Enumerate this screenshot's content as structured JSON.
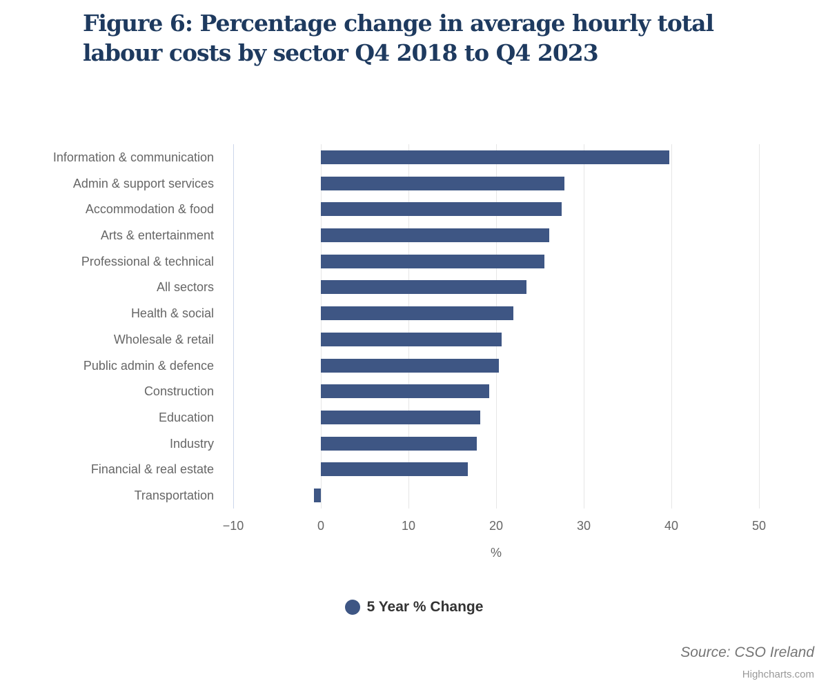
{
  "title": "Figure 6: Percentage change in average hourly total labour costs by sector Q4 2018 to Q4 2023",
  "chart_data": {
    "type": "bar",
    "orientation": "horizontal",
    "title": "Figure 6: Percentage change in average hourly total labour costs by sector Q4 2018 to Q4 2023",
    "categories": [
      "Information & communication",
      "Admin & support services",
      "Accommodation & food",
      "Arts & entertainment",
      "Professional & technical",
      "All sectors",
      "Health & social",
      "Wholesale & retail",
      "Public admin & defence",
      "Construction",
      "Education",
      "Industry",
      "Financial & real estate",
      "Transportation"
    ],
    "series": [
      {
        "name": "5 Year % Change",
        "values": [
          39.8,
          27.8,
          27.5,
          26.1,
          25.5,
          23.5,
          22.0,
          20.6,
          20.3,
          19.2,
          18.2,
          17.8,
          16.8,
          -0.8
        ]
      }
    ],
    "xlabel": "%",
    "xlim": [
      -10,
      50
    ],
    "xticks": [
      -10,
      0,
      10,
      20,
      30,
      40,
      50
    ],
    "xtick_labels": [
      "−10",
      "0",
      "10",
      "20",
      "30",
      "40",
      "50"
    ],
    "grid": true,
    "legend_position": "bottom-center",
    "bar_color": "#3e5684"
  },
  "legend": {
    "label": "5 Year % Change",
    "marker_color": "#3e5684"
  },
  "footer": {
    "source": "Source: CSO Ireland",
    "credit": "Highcharts.com"
  },
  "colors": {
    "title": "#1e3a5f",
    "axis_text": "#666666",
    "gridline": "#e6e6e6",
    "axis_line": "#ccd6eb",
    "legend_text": "#333333",
    "source_text": "#757575",
    "credit_text": "#999999",
    "background": "#ffffff"
  }
}
